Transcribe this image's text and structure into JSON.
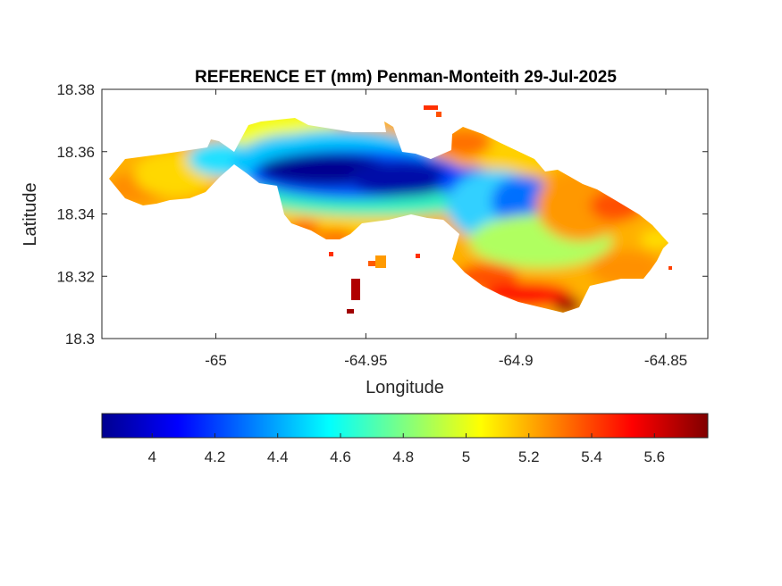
{
  "chart_data": {
    "type": "heatmap",
    "title": "REFERENCE ET (mm) Penman-Monteith 29-Jul-2025",
    "xlabel": "Longitude",
    "ylabel": "Latitude",
    "xlim": [
      -65.038,
      -64.836
    ],
    "ylim": [
      18.3,
      18.38
    ],
    "xticks": [
      -65,
      -64.95,
      -64.9,
      -64.85
    ],
    "xtick_labels": [
      "-65",
      "-64.95",
      "-64.9",
      "-64.85"
    ],
    "yticks": [
      18.3,
      18.32,
      18.34,
      18.36,
      18.38
    ],
    "ytick_labels": [
      "18.3",
      "18.32",
      "18.34",
      "18.36",
      "18.38"
    ],
    "grid": false,
    "colormap": "jet",
    "colorbar": {
      "orientation": "horizontal",
      "location": "below",
      "range": [
        3.84,
        5.77
      ],
      "ticks": [
        4,
        4.2,
        4.4,
        4.6,
        4.8,
        5,
        5.2,
        5.4,
        5.6
      ],
      "tick_labels": [
        "4",
        "4.2",
        "4.4",
        "4.6",
        "4.8",
        "5",
        "5.2",
        "5.4",
        "5.6"
      ]
    },
    "samples": [
      {
        "lon": -65.034,
        "lat": 18.351,
        "value": 5.35
      },
      {
        "lon": -65.025,
        "lat": 18.355,
        "value": 5.05
      },
      {
        "lon": -65.015,
        "lat": 18.357,
        "value": 4.75
      },
      {
        "lon": -65.005,
        "lat": 18.356,
        "value": 4.45
      },
      {
        "lon": -64.995,
        "lat": 18.357,
        "value": 4.3
      },
      {
        "lon": -64.985,
        "lat": 18.364,
        "value": 4.8
      },
      {
        "lon": -64.98,
        "lat": 18.353,
        "value": 3.9
      },
      {
        "lon": -64.965,
        "lat": 18.355,
        "value": 3.86
      },
      {
        "lon": -64.95,
        "lat": 18.352,
        "value": 3.9
      },
      {
        "lon": -64.935,
        "lat": 18.35,
        "value": 4.05
      },
      {
        "lon": -64.92,
        "lat": 18.348,
        "value": 4.2
      },
      {
        "lon": -64.905,
        "lat": 18.34,
        "value": 4.4
      },
      {
        "lon": -64.895,
        "lat": 18.345,
        "value": 4.65
      },
      {
        "lon": -64.89,
        "lat": 18.332,
        "value": 4.8
      },
      {
        "lon": -64.875,
        "lat": 18.345,
        "value": 5.3
      },
      {
        "lon": -64.865,
        "lat": 18.34,
        "value": 5.35
      },
      {
        "lon": -64.855,
        "lat": 18.336,
        "value": 5.1
      },
      {
        "lon": -64.91,
        "lat": 18.314,
        "value": 5.5
      },
      {
        "lon": -64.885,
        "lat": 18.313,
        "value": 5.75
      },
      {
        "lon": -64.975,
        "lat": 18.335,
        "value": 5.2
      },
      {
        "lon": -64.95,
        "lat": 18.34,
        "value": 4.9
      },
      {
        "lon": -64.955,
        "lat": 18.315,
        "value": 5.7
      }
    ]
  }
}
